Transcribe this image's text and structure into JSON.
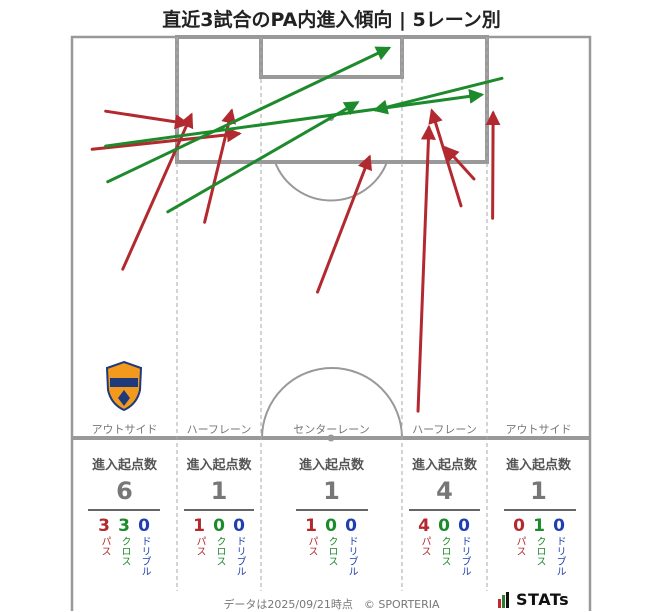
{
  "title": "直近3試合のPA内進入傾向 | 5レーン別",
  "lanes": [
    {
      "id": "outside-left",
      "label": "アウトサイド",
      "header": "進入起点数",
      "total": "6",
      "pass": "3",
      "cross": "3",
      "dribble": "0"
    },
    {
      "id": "halfspace-left",
      "label": "ハーフレーン",
      "header": "進入起点数",
      "total": "1",
      "pass": "1",
      "cross": "0",
      "dribble": "0"
    },
    {
      "id": "center",
      "label": "センターレーン",
      "header": "進入起点数",
      "total": "1",
      "pass": "1",
      "cross": "0",
      "dribble": "0"
    },
    {
      "id": "halfspace-right",
      "label": "ハーフレーン",
      "header": "進入起点数",
      "total": "4",
      "pass": "4",
      "cross": "0",
      "dribble": "0"
    },
    {
      "id": "outside-right",
      "label": "アウトサイド",
      "header": "進入起点数",
      "total": "1",
      "pass": "0",
      "cross": "1",
      "dribble": "0"
    }
  ],
  "legend": {
    "pass": "パス",
    "cross": "クロス",
    "dribble": "ドリブル"
  },
  "colors": {
    "pass": "#b22a2f",
    "cross": "#1d8a2b",
    "dribble": "#1f3fb0",
    "pitch_line": "#999999"
  },
  "footer": "データは2025/09/21時点　© SPORTERIA",
  "logo_text": "STATs",
  "crest_text": "S-PULSE",
  "chart_data": {
    "type": "scatter",
    "title": "直近3試合のPA内進入傾向 | 5レーン別",
    "description_units": "pitch coordinates: x 0-100 (left to right across width), y 0-100 (goal line at 0, halfway line at 100)",
    "series": [
      {
        "name": "パス",
        "arrows": [
          {
            "x1": 9.8,
            "y1": 57.9,
            "x2": 23.0,
            "y2": 19.5
          },
          {
            "x1": 6.5,
            "y1": 18.5,
            "x2": 22.2,
            "y2": 21.6
          },
          {
            "x1": 3.9,
            "y1": 28.0,
            "x2": 32.2,
            "y2": 24.1
          },
          {
            "x1": 25.6,
            "y1": 46.2,
            "x2": 30.8,
            "y2": 18.5
          },
          {
            "x1": 47.4,
            "y1": 63.6,
            "x2": 57.4,
            "y2": 30.0
          },
          {
            "x1": 66.8,
            "y1": 93.3,
            "x2": 68.9,
            "y2": 22.6
          },
          {
            "x1": 75.1,
            "y1": 42.1,
            "x2": 69.5,
            "y2": 18.5
          },
          {
            "x1": 77.6,
            "y1": 35.4,
            "x2": 72.2,
            "y2": 27.7
          },
          {
            "x1": 81.2,
            "y1": 45.2,
            "x2": 81.3,
            "y2": 19.0
          }
        ]
      },
      {
        "name": "クロス",
        "arrows": [
          {
            "x1": 6.9,
            "y1": 36.1,
            "x2": 61.1,
            "y2": 2.8
          },
          {
            "x1": 18.5,
            "y1": 43.6,
            "x2": 55.0,
            "y2": 16.4
          },
          {
            "x1": 6.5,
            "y1": 27.2,
            "x2": 79.0,
            "y2": 14.4
          },
          {
            "x1": 83.0,
            "y1": 10.3,
            "x2": 58.6,
            "y2": 18.2
          }
        ]
      }
    ]
  }
}
